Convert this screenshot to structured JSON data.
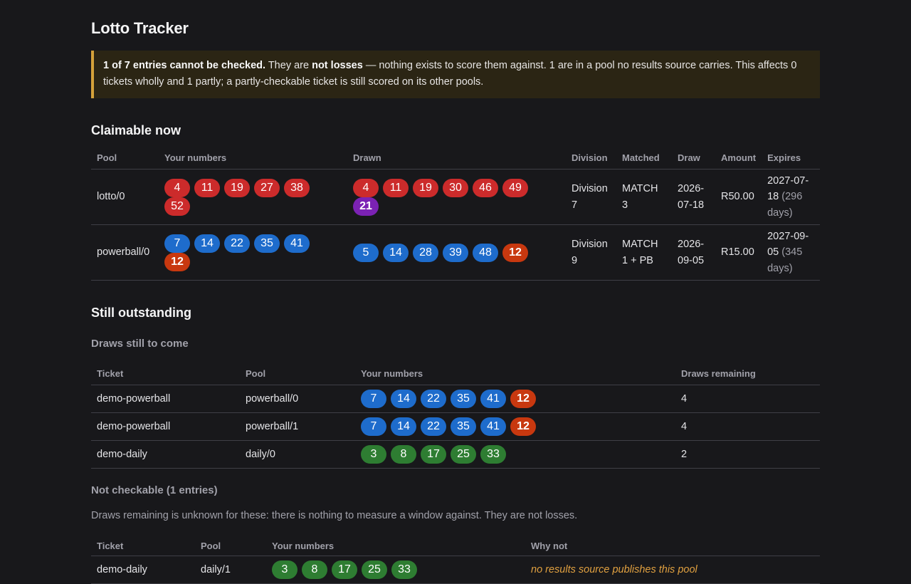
{
  "app": {
    "title": "Lotto Tracker"
  },
  "notice": {
    "headline": "1 of 7 entries cannot be checked.",
    "part1": " They are ",
    "emph": "not losses",
    "part2": " — nothing exists to score them against. 1 are in a pool no results source carries. This affects 0 tickets wholly and 1 partly; a partly-checkable ticket is still scored on its other pools.",
    "accent_color": "#d4a13a"
  },
  "claimable": {
    "heading": "Claimable now",
    "columns": [
      "Pool",
      "Your numbers",
      "Drawn",
      "Division",
      "Matched",
      "Draw",
      "Amount",
      "Expires"
    ],
    "rows": [
      {
        "pool": "lotto/0",
        "your_numbers": [
          {
            "n": "4",
            "color": "#cc2b2b"
          },
          {
            "n": "11",
            "color": "#cc2b2b"
          },
          {
            "n": "19",
            "color": "#cc2b2b"
          },
          {
            "n": "27",
            "color": "#cc2b2b"
          },
          {
            "n": "38",
            "color": "#cc2b2b"
          },
          {
            "n": "52",
            "color": "#cc2b2b"
          }
        ],
        "drawn": [
          {
            "n": "4",
            "color": "#cc2b2b"
          },
          {
            "n": "11",
            "color": "#cc2b2b"
          },
          {
            "n": "19",
            "color": "#cc2b2b"
          },
          {
            "n": "30",
            "color": "#cc2b2b"
          },
          {
            "n": "46",
            "color": "#cc2b2b"
          },
          {
            "n": "49",
            "color": "#cc2b2b"
          },
          {
            "n": "21",
            "color": "#7b22b4",
            "bonus": true
          }
        ],
        "division": "Division 7",
        "matched": "MATCH 3",
        "draw": "2026-07-18",
        "amount": "R50.00",
        "expires": "2027-07-18",
        "expires_note": "(296 days)"
      },
      {
        "pool": "powerball/0",
        "your_numbers": [
          {
            "n": "7",
            "color": "#1e6ccc"
          },
          {
            "n": "14",
            "color": "#1e6ccc"
          },
          {
            "n": "22",
            "color": "#1e6ccc"
          },
          {
            "n": "35",
            "color": "#1e6ccc"
          },
          {
            "n": "41",
            "color": "#1e6ccc"
          },
          {
            "n": "12",
            "color": "#c8380f",
            "bonus": true
          }
        ],
        "drawn": [
          {
            "n": "5",
            "color": "#1e6ccc"
          },
          {
            "n": "14",
            "color": "#1e6ccc"
          },
          {
            "n": "28",
            "color": "#1e6ccc"
          },
          {
            "n": "39",
            "color": "#1e6ccc"
          },
          {
            "n": "48",
            "color": "#1e6ccc"
          },
          {
            "n": "12",
            "color": "#c8380f",
            "bonus": true
          }
        ],
        "division": "Division 9",
        "matched": "MATCH 1 + PB",
        "draw": "2026-09-05",
        "amount": "R15.00",
        "expires": "2027-09-05",
        "expires_note": "(345 days)"
      }
    ]
  },
  "outstanding": {
    "heading": "Still outstanding",
    "upcoming": {
      "heading": "Draws still to come",
      "columns": [
        "Ticket",
        "Pool",
        "Your numbers",
        "Draws remaining"
      ],
      "rows": [
        {
          "ticket": "demo-powerball",
          "pool": "powerball/0",
          "remaining": "4",
          "numbers": [
            {
              "n": "7",
              "color": "#1e6ccc"
            },
            {
              "n": "14",
              "color": "#1e6ccc"
            },
            {
              "n": "22",
              "color": "#1e6ccc"
            },
            {
              "n": "35",
              "color": "#1e6ccc"
            },
            {
              "n": "41",
              "color": "#1e6ccc"
            },
            {
              "n": "12",
              "color": "#c8380f",
              "bonus": true
            }
          ]
        },
        {
          "ticket": "demo-powerball",
          "pool": "powerball/1",
          "remaining": "4",
          "numbers": [
            {
              "n": "7",
              "color": "#1e6ccc"
            },
            {
              "n": "14",
              "color": "#1e6ccc"
            },
            {
              "n": "22",
              "color": "#1e6ccc"
            },
            {
              "n": "35",
              "color": "#1e6ccc"
            },
            {
              "n": "41",
              "color": "#1e6ccc"
            },
            {
              "n": "12",
              "color": "#c8380f",
              "bonus": true
            }
          ]
        },
        {
          "ticket": "demo-daily",
          "pool": "daily/0",
          "remaining": "2",
          "numbers": [
            {
              "n": "3",
              "color": "#2e7d32"
            },
            {
              "n": "8",
              "color": "#2e7d32"
            },
            {
              "n": "17",
              "color": "#2e7d32"
            },
            {
              "n": "25",
              "color": "#2e7d32"
            },
            {
              "n": "33",
              "color": "#2e7d32"
            }
          ]
        }
      ]
    },
    "not_checkable": {
      "heading": "Not checkable (1 entries)",
      "note": "Draws remaining is unknown for these: there is nothing to measure a window against. They are not losses.",
      "columns": [
        "Ticket",
        "Pool",
        "Your numbers",
        "Why not"
      ],
      "rows": [
        {
          "ticket": "demo-daily",
          "pool": "daily/1",
          "numbers": [
            {
              "n": "3",
              "color": "#2e7d32"
            },
            {
              "n": "8",
              "color": "#2e7d32"
            },
            {
              "n": "17",
              "color": "#2e7d32"
            },
            {
              "n": "25",
              "color": "#2e7d32"
            },
            {
              "n": "33",
              "color": "#2e7d32"
            }
          ],
          "why": "no results source publishes this pool"
        }
      ]
    }
  }
}
